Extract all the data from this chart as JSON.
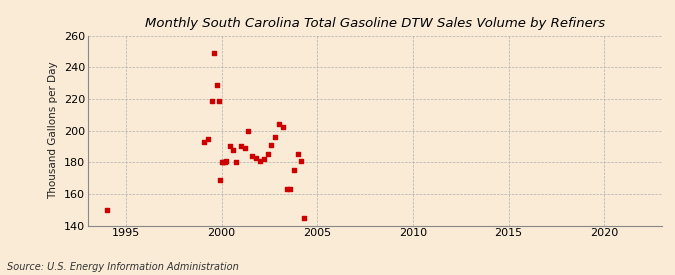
{
  "title": "Monthly South Carolina Total Gasoline DTW Sales Volume by Refiners",
  "ylabel": "Thousand Gallons per Day",
  "source": "Source: U.S. Energy Information Administration",
  "background_color": "#faebd7",
  "plot_bg_color": "#faebd7",
  "marker_color": "#cc0000",
  "marker": "s",
  "marker_size": 3,
  "xlim": [
    1993,
    2023
  ],
  "ylim": [
    140,
    260
  ],
  "xticks": [
    1995,
    2000,
    2005,
    2010,
    2015,
    2020
  ],
  "yticks": [
    140,
    160,
    180,
    200,
    220,
    240,
    260
  ],
  "x": [
    1994.0,
    1999.1,
    1999.3,
    1999.5,
    1999.6,
    1999.75,
    1999.85,
    1999.92,
    2000.0,
    2000.08,
    2000.17,
    2000.25,
    2000.42,
    2000.6,
    2000.75,
    2001.0,
    2001.2,
    2001.4,
    2001.6,
    2001.8,
    2002.0,
    2002.2,
    2002.4,
    2002.6,
    2002.8,
    2003.0,
    2003.2,
    2003.4,
    2003.6,
    2003.8,
    2004.0,
    2004.15,
    2004.3
  ],
  "y": [
    150,
    193,
    195,
    219,
    249,
    229,
    219,
    169,
    180,
    180,
    180,
    181,
    190,
    188,
    180,
    190,
    189,
    200,
    184,
    183,
    181,
    182,
    185,
    191,
    196,
    204,
    202,
    163,
    163,
    175,
    185,
    181,
    145
  ]
}
